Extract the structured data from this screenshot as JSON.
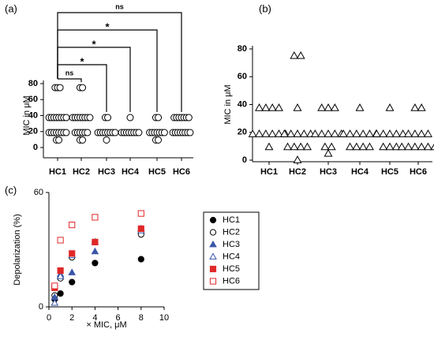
{
  "chart_data": [
    {
      "type": "dot",
      "panel": "(a)",
      "y_label": "MIC in μM",
      "marker": "circle",
      "color": "#000000",
      "categories": [
        "HC1",
        "HC2",
        "HC3",
        "HC4",
        "HC5",
        "HC6"
      ],
      "points": [
        [
          75,
          75,
          75,
          37.5,
          37.5,
          37.5,
          37.5,
          37.5,
          37.5,
          37.5,
          37.5,
          18.75,
          18.75,
          18.75,
          18.75,
          18.75,
          18.75,
          18.75,
          18.75,
          9.4,
          9.4
        ],
        [
          75,
          75,
          37.5,
          37.5,
          37.5,
          37.5,
          37.5,
          37.5,
          37.5,
          37.5,
          18.75,
          18.75,
          18.75,
          18.75,
          18.75,
          18.75,
          9.4,
          9.4
        ],
        [
          37.5,
          37.5,
          18.75,
          18.75,
          18.75,
          18.75,
          18.75,
          18.75,
          18.75,
          18.75,
          9.4
        ],
        [
          37.5,
          18.75,
          18.75,
          18.75,
          18.75,
          18.75,
          18.75,
          18.75,
          18.75
        ],
        [
          37.5,
          37.5,
          18.75,
          18.75,
          18.75,
          18.75,
          18.75,
          18.75,
          18.75,
          9.4,
          9.4
        ],
        [
          37.5,
          37.5,
          37.5,
          37.5,
          37.5,
          37.5,
          37.5,
          18.75,
          18.75,
          18.75,
          18.75,
          18.75,
          18.75,
          18.75,
          18.75
        ]
      ],
      "ylim": [
        0,
        80
      ],
      "yticks": [
        0,
        20,
        40,
        60,
        80
      ],
      "brackets": [
        {
          "from": "HC1",
          "to": "HC2",
          "label": "ns"
        },
        {
          "from": "HC1",
          "to": "HC3",
          "label": "*"
        },
        {
          "from": "HC1",
          "to": "HC4",
          "label": "*"
        },
        {
          "from": "HC1",
          "to": "HC5",
          "label": "*"
        },
        {
          "from": "HC1",
          "to": "HC6",
          "label": "ns"
        }
      ]
    },
    {
      "type": "dot",
      "panel": "(b)",
      "y_label": "MIC in μM",
      "marker": "triangle",
      "color": "#000000",
      "categories": [
        "HC1",
        "HC2",
        "HC3",
        "HC4",
        "HC5",
        "HC6"
      ],
      "points": [
        [
          37.5,
          37.5,
          37.5,
          37.5,
          18.75,
          18.75,
          18.75,
          18.75,
          18.75,
          18.75,
          9.4
        ],
        [
          75,
          75,
          37.5,
          18.75,
          18.75,
          18.75,
          18.75,
          18.75,
          9.4,
          9.4,
          9.4,
          9.4,
          0
        ],
        [
          37.5,
          37.5,
          37.5,
          18.75,
          18.75,
          18.75,
          18.75,
          18.75,
          9.4,
          9.4,
          4.7
        ],
        [
          37.5,
          18.75,
          18.75,
          18.75,
          18.75,
          18.75,
          18.75,
          9.4,
          9.4,
          9.4,
          9.4
        ],
        [
          37.5,
          18.75,
          18.75,
          18.75,
          18.75,
          18.75,
          9.4,
          9.4,
          9.4
        ],
        [
          37.5,
          37.5,
          18.75,
          18.75,
          18.75,
          18.75,
          9.4,
          9.4,
          9.4,
          9.4,
          9.4,
          9.4
        ]
      ],
      "ylim": [
        0,
        80
      ],
      "yticks": [
        0,
        20,
        40,
        60,
        80
      ]
    },
    {
      "type": "scatter",
      "panel": "(c)",
      "x_label": "× MIC, μM",
      "y_label": "Depolarization (%)",
      "xlim": [
        0,
        10
      ],
      "xticks": [
        0,
        2,
        4,
        6,
        8,
        10
      ],
      "ylim": [
        0,
        60
      ],
      "yticks": [
        0,
        60
      ],
      "x": [
        0.5,
        1,
        2,
        4,
        8
      ],
      "series": [
        {
          "name": "HC1",
          "color": "#000000",
          "marker": "circle",
          "filled": true,
          "values": [
            4,
            7,
            13,
            23,
            25
          ]
        },
        {
          "name": "HC2",
          "color": "#000000",
          "marker": "circle",
          "filled": false,
          "values": [
            6,
            15,
            26,
            34,
            38
          ]
        },
        {
          "name": "HC3",
          "color": "#3a56a8",
          "marker": "triangle",
          "filled": true,
          "values": [
            5,
            17,
            18,
            29,
            41
          ]
        },
        {
          "name": "HC4",
          "color": "#3a56a8",
          "marker": "triangle",
          "filled": false,
          "values": [
            2,
            16,
            27,
            34,
            40
          ]
        },
        {
          "name": "HC5",
          "color": "#e02828",
          "marker": "square",
          "filled": true,
          "values": [
            10,
            19,
            28,
            34,
            41
          ]
        },
        {
          "name": "HC6",
          "color": "#e02828",
          "marker": "square",
          "filled": false,
          "values": [
            11,
            35,
            43,
            47,
            49
          ]
        }
      ]
    }
  ]
}
